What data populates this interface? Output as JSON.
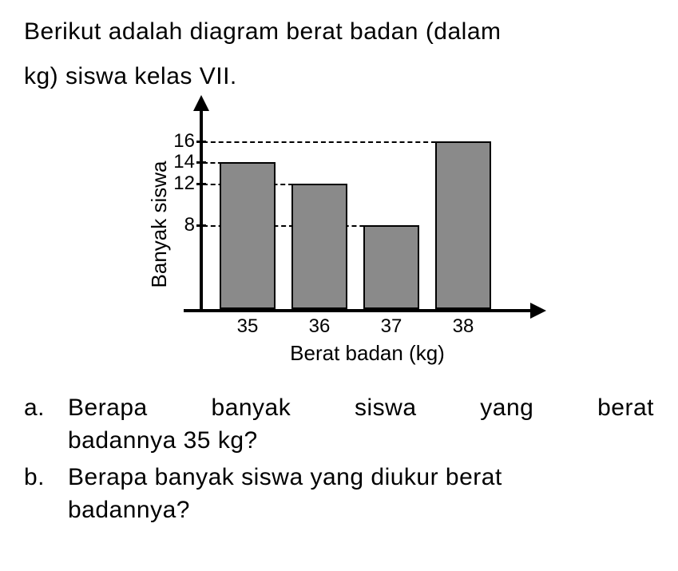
{
  "title_line1": "Berikut adalah diagram berat badan (dalam",
  "title_line2": "kg) siswa kelas VII.",
  "chart": {
    "type": "bar",
    "y_axis_label": "Banyak siswa",
    "x_axis_label": "Berat badan (kg)",
    "y_ticks": [
      8,
      12,
      14,
      16
    ],
    "y_max": 18,
    "categories": [
      "35",
      "36",
      "37",
      "38"
    ],
    "values": [
      14,
      12,
      8,
      16
    ],
    "bar_fill": "#8a8a8a",
    "bar_border": "#000000",
    "axis_color": "#000000",
    "grid_style": "dashed",
    "grid_color": "#000000",
    "background_color": "#ffffff",
    "bar_width_ratio": 0.78,
    "title_fontsize": 30,
    "label_fontsize": 26,
    "tick_fontsize": 24,
    "gridlines": [
      {
        "at": 16,
        "from_bar": 0,
        "to_bar": 3
      },
      {
        "at": 14,
        "from_bar": 0,
        "to_bar": 0
      },
      {
        "at": 12,
        "from_bar": 0,
        "to_bar": 1
      },
      {
        "at": 8,
        "from_bar": 0,
        "to_bar": 2
      }
    ]
  },
  "questions": {
    "a": {
      "letter": "a.",
      "line1": "Berapa banyak siswa yang berat",
      "line2": "badannya 35 kg?"
    },
    "b": {
      "letter": "b.",
      "line1": "Berapa banyak siswa yang diukur berat",
      "line2": "badannya?"
    }
  }
}
